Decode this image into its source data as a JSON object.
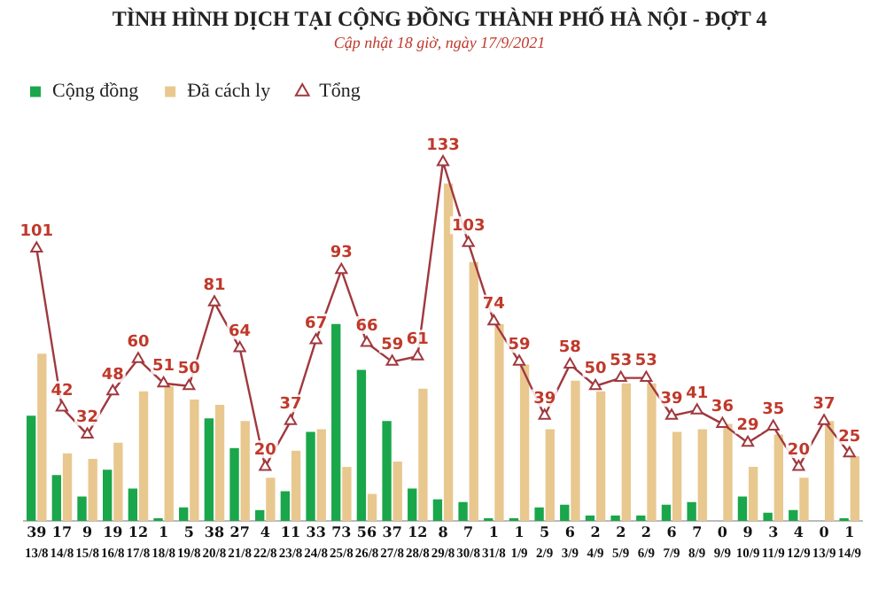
{
  "chart_data": {
    "type": "bar",
    "title": "TÌNH HÌNH DỊCH TẠI CỘNG ĐỒNG THÀNH PHỐ HÀ NỘI - ĐỢT 4",
    "subtitle": "Cập nhật 18 giờ, ngày 17/9/2021",
    "categories": [
      "13/8",
      "14/8",
      "15/8",
      "16/8",
      "17/8",
      "18/8",
      "19/8",
      "20/8",
      "21/8",
      "22/8",
      "23/8",
      "24/8",
      "25/8",
      "26/8",
      "27/8",
      "28/8",
      "29/8",
      "30/8",
      "31/8",
      "1/9",
      "2/9",
      "3/9",
      "4/9",
      "5/9",
      "6/9",
      "7/9",
      "8/9",
      "9/9",
      "10/9",
      "11/9",
      "12/9",
      "13/9",
      "14/9"
    ],
    "series": [
      {
        "name": "Cộng đồng",
        "color": "#1aa64a",
        "values": [
          39,
          17,
          9,
          19,
          12,
          1,
          5,
          38,
          27,
          4,
          11,
          33,
          73,
          56,
          37,
          12,
          8,
          7,
          1,
          1,
          5,
          6,
          2,
          2,
          2,
          6,
          7,
          0,
          9,
          3,
          4,
          0,
          1
        ],
        "value_labels": [
          "39",
          "17",
          "9",
          "19",
          "12",
          "1",
          "5",
          "38",
          "27",
          "4",
          "11",
          "33",
          "73",
          "56",
          "37",
          "12",
          "8",
          "7",
          "1",
          "1",
          "5",
          "6",
          "2",
          "2",
          "2",
          "6",
          "7",
          "0",
          "9",
          "3",
          "4",
          "0",
          "1"
        ]
      },
      {
        "name": "Đã cách ly",
        "color": "#e8c88f",
        "values": [
          62,
          25,
          23,
          29,
          48,
          50,
          45,
          43,
          37,
          16,
          26,
          34,
          20,
          10,
          22,
          49,
          125,
          96,
          73,
          58,
          34,
          52,
          48,
          51,
          51,
          33,
          34,
          36,
          20,
          32,
          16,
          37,
          24
        ]
      },
      {
        "name": "Tổng",
        "type": "line",
        "color": "#a0393f",
        "values": [
          101,
          42,
          32,
          48,
          60,
          51,
          50,
          81,
          64,
          20,
          37,
          67,
          93,
          66,
          59,
          61,
          133,
          103,
          74,
          59,
          39,
          58,
          50,
          53,
          53,
          39,
          41,
          36,
          29,
          35,
          20,
          37,
          25
        ],
        "value_labels": [
          "101",
          "42",
          "32",
          "48",
          "60",
          "51",
          "50",
          "81",
          "64",
          "20",
          "37",
          "67",
          "93",
          "66",
          "59",
          "61",
          "133",
          "103",
          "74",
          "59",
          "39",
          "58",
          "50",
          "53",
          "53",
          "39",
          "41",
          "36",
          "29",
          "35",
          "20",
          "37",
          "25"
        ]
      }
    ],
    "marker": "triangle",
    "legend": "top left",
    "grid": false
  }
}
